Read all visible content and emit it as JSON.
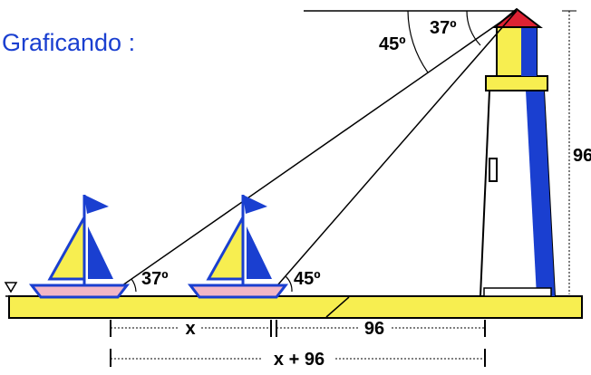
{
  "heading": "Graficando :",
  "labels": {
    "angle_top_outer": "45º",
    "angle_top_inner": "37º",
    "angle_boat_far": "37º",
    "angle_boat_near": "45º",
    "height": "96",
    "dist_x": "x",
    "dist_96": "96",
    "dist_total": "x + 96"
  }
}
